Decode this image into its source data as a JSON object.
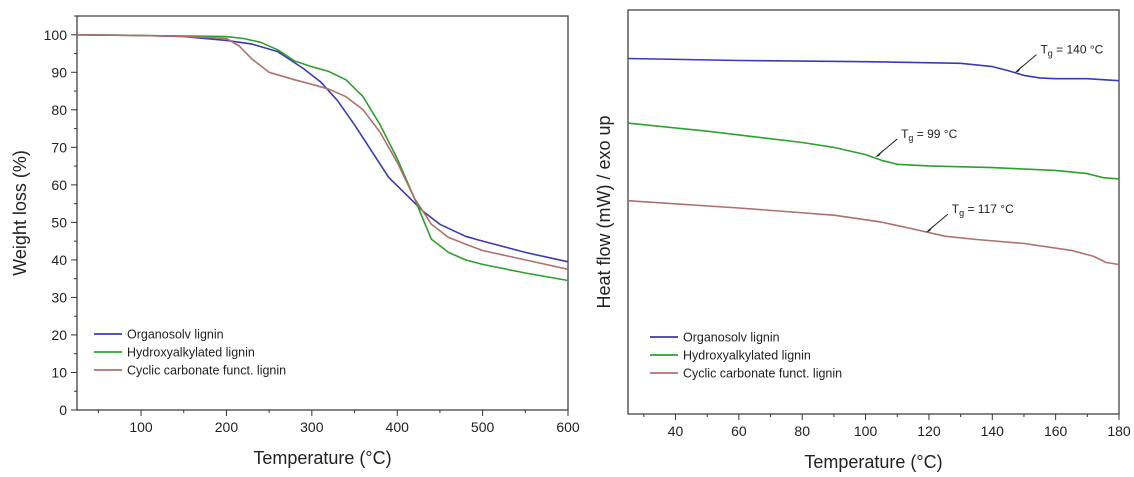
{
  "chart_data": [
    {
      "type": "line",
      "xlabel": "Temperature (°C)",
      "ylabel": "Weight loss (%)",
      "xlim": [
        25,
        600
      ],
      "ylim": [
        0,
        105
      ],
      "xticks": [
        100,
        200,
        300,
        400,
        500,
        600
      ],
      "yticks": [
        0,
        10,
        20,
        30,
        40,
        50,
        60,
        70,
        80,
        90,
        100
      ],
      "legend_position": "bottom-left",
      "series": [
        {
          "name": "Organosolv lignin",
          "color": "#3b3bb0",
          "x": [
            25,
            100,
            150,
            200,
            230,
            260,
            290,
            310,
            330,
            350,
            370,
            390,
            410,
            430,
            450,
            480,
            500,
            550,
            600
          ],
          "y": [
            100,
            99.8,
            99.5,
            98.5,
            97.5,
            95.5,
            91,
            87.5,
            82.5,
            76,
            69,
            62,
            57.5,
            53,
            49.5,
            46.3,
            45,
            42,
            39.5
          ]
        },
        {
          "name": "Hydroxyalkylated lignin",
          "color": "#2ea02e",
          "x": [
            25,
            100,
            150,
            200,
            220,
            240,
            260,
            280,
            300,
            320,
            340,
            360,
            380,
            400,
            420,
            440,
            460,
            480,
            500,
            550,
            600
          ],
          "y": [
            100,
            99.8,
            99.7,
            99.5,
            99,
            98,
            96,
            93,
            91.5,
            90.2,
            88,
            83.5,
            76,
            67,
            56.5,
            45.5,
            42,
            40,
            38.8,
            36.5,
            34.5
          ]
        },
        {
          "name": "Cyclic carbonate funct. lignin",
          "color": "#b07070",
          "x": [
            25,
            100,
            150,
            200,
            215,
            230,
            250,
            280,
            300,
            320,
            340,
            360,
            380,
            400,
            420,
            440,
            460,
            480,
            500,
            550,
            600
          ],
          "y": [
            100,
            99.8,
            99.6,
            99,
            97,
            93.5,
            90,
            88,
            86.8,
            85.5,
            83.5,
            80,
            74,
            66,
            56.5,
            49.5,
            46,
            44.2,
            42.5,
            40,
            37.5
          ]
        }
      ]
    },
    {
      "type": "line",
      "xlabel": "Temperature (°C)",
      "ylabel": "Heat flow (mW) / exo up",
      "xlim": [
        25,
        180
      ],
      "ylim": [
        0,
        1
      ],
      "xticks": [
        40,
        60,
        80,
        100,
        120,
        140,
        160,
        180
      ],
      "yticks": [],
      "legend_position": "bottom-left",
      "series": [
        {
          "name": "Organosolv lignin",
          "color": "#3b3bb0",
          "x": [
            25,
            60,
            100,
            130,
            140,
            145,
            150,
            155,
            160,
            170,
            180
          ],
          "y": [
            0.88,
            0.875,
            0.872,
            0.868,
            0.86,
            0.85,
            0.838,
            0.832,
            0.83,
            0.83,
            0.825
          ]
        },
        {
          "name": "Hydroxyalkylated lignin",
          "color": "#2ea02e",
          "x": [
            25,
            50,
            80,
            90,
            100,
            105,
            110,
            120,
            140,
            160,
            170,
            175,
            180
          ],
          "y": [
            0.72,
            0.7,
            0.672,
            0.66,
            0.642,
            0.628,
            0.618,
            0.614,
            0.61,
            0.603,
            0.595,
            0.585,
            0.582
          ]
        },
        {
          "name": "Cyclic carbonate funct. lignin",
          "color": "#b07070",
          "x": [
            25,
            60,
            90,
            105,
            115,
            125,
            135,
            150,
            165,
            172,
            176,
            180
          ],
          "y": [
            0.528,
            0.51,
            0.492,
            0.475,
            0.458,
            0.44,
            0.432,
            0.422,
            0.405,
            0.39,
            0.375,
            0.37
          ]
        }
      ],
      "annotations": [
        {
          "label": "T",
          "sub": "g",
          "value": " = 140 °C",
          "x": 147,
          "y": 0.845
        },
        {
          "label": "T",
          "sub": "g",
          "value": " = 99 °C",
          "x": 103,
          "y": 0.636
        },
        {
          "label": "T",
          "sub": "g",
          "value": " = 117 °C",
          "x": 119,
          "y": 0.45
        }
      ]
    }
  ]
}
